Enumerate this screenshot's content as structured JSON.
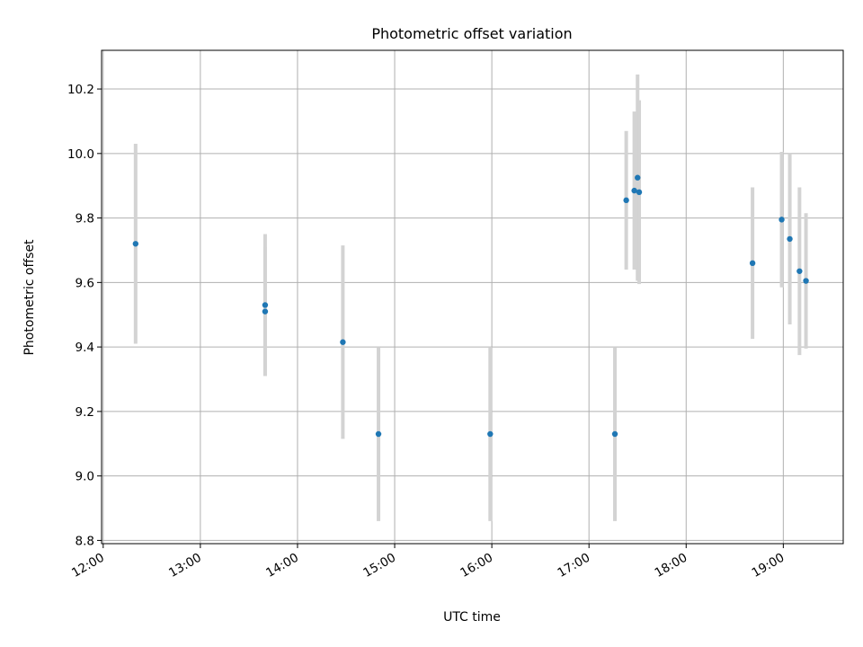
{
  "chart_data": {
    "type": "scatter",
    "title": "Photometric offset variation",
    "xlabel": "UTC time",
    "ylabel": "Photometric offset",
    "x_tick_labels": [
      "12:00",
      "13:00",
      "14:00",
      "15:00",
      "16:00",
      "17:00",
      "18:00",
      "19:00"
    ],
    "y_tick_labels": [
      "8.8",
      "9.0",
      "9.2",
      "9.4",
      "9.6",
      "9.8",
      "10.0",
      "10.2"
    ],
    "xlim": [
      "11:59",
      "19:37"
    ],
    "ylim": [
      8.79,
      10.32
    ],
    "grid": true,
    "points": [
      {
        "x": "12:20",
        "y": 9.72,
        "err": 0.31
      },
      {
        "x": "13:40",
        "y": 9.53,
        "err": 0.22
      },
      {
        "x": "13:40",
        "y": 9.51,
        "err": 0.2
      },
      {
        "x": "14:28",
        "y": 9.415,
        "err": 0.3
      },
      {
        "x": "14:50",
        "y": 9.13,
        "err": 0.27
      },
      {
        "x": "15:59",
        "y": 9.13,
        "err": 0.27
      },
      {
        "x": "17:16",
        "y": 9.13,
        "err": 0.27
      },
      {
        "x": "17:23",
        "y": 9.855,
        "err": 0.215
      },
      {
        "x": "17:28",
        "y": 9.885,
        "err": 0.245
      },
      {
        "x": "17:30",
        "y": 9.925,
        "err": 0.32
      },
      {
        "x": "17:31",
        "y": 9.88,
        "err": 0.285
      },
      {
        "x": "18:41",
        "y": 9.66,
        "err": 0.235
      },
      {
        "x": "18:59",
        "y": 9.795,
        "err": 0.21
      },
      {
        "x": "19:04",
        "y": 9.735,
        "err": 0.265
      },
      {
        "x": "19:10",
        "y": 9.635,
        "err": 0.26
      },
      {
        "x": "19:14",
        "y": 9.605,
        "err": 0.21
      }
    ],
    "colors": {
      "point": "#1f77b4",
      "errorbar": "#d3d3d3",
      "grid": "#b0b0b0"
    }
  }
}
